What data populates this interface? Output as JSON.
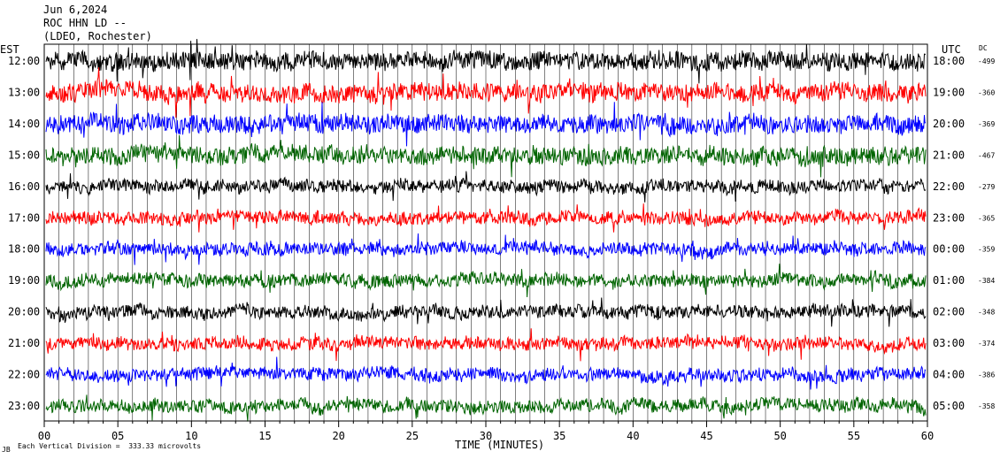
{
  "header": {
    "date": "Jun 6,2024",
    "station": "ROC HHN LD --",
    "network": "(LDEO, Rochester)"
  },
  "labels": {
    "left_zone": "EST",
    "right_zone": "UTC",
    "dc": "DC",
    "xlabel": "TIME (MINUTES)",
    "scale_note": "Each Vertical Division =  333.33 microvolts",
    "corner_mark": "JB"
  },
  "chart_data": {
    "type": "line",
    "title": "",
    "xlabel": "TIME (MINUTES)",
    "ylabel": "",
    "xlim": [
      0,
      60
    ],
    "x_ticks": [
      "00",
      "05",
      "10",
      "15",
      "20",
      "25",
      "30",
      "35",
      "40",
      "45",
      "50",
      "55",
      "60"
    ],
    "grid": "vertical lines each minute",
    "trace_colors": [
      "#000000",
      "#ff0000",
      "#0000ff",
      "#006400"
    ],
    "rows": [
      {
        "est": "12:00",
        "utc": "18:00",
        "dc": "-499"
      },
      {
        "est": "13:00",
        "utc": "19:00",
        "dc": "-360"
      },
      {
        "est": "14:00",
        "utc": "20:00",
        "dc": "-369"
      },
      {
        "est": "15:00",
        "utc": "21:00",
        "dc": "-467"
      },
      {
        "est": "16:00",
        "utc": "22:00",
        "dc": "-279"
      },
      {
        "est": "17:00",
        "utc": "23:00",
        "dc": "-365"
      },
      {
        "est": "18:00",
        "utc": "00:00",
        "dc": "-359"
      },
      {
        "est": "19:00",
        "utc": "01:00",
        "dc": "-384"
      },
      {
        "est": "20:00",
        "utc": "02:00",
        "dc": "-348"
      },
      {
        "est": "21:00",
        "utc": "03:00",
        "dc": "-374"
      },
      {
        "est": "22:00",
        "utc": "04:00",
        "dc": "-386"
      },
      {
        "est": "23:00",
        "utc": "05:00",
        "dc": "-358"
      }
    ]
  }
}
